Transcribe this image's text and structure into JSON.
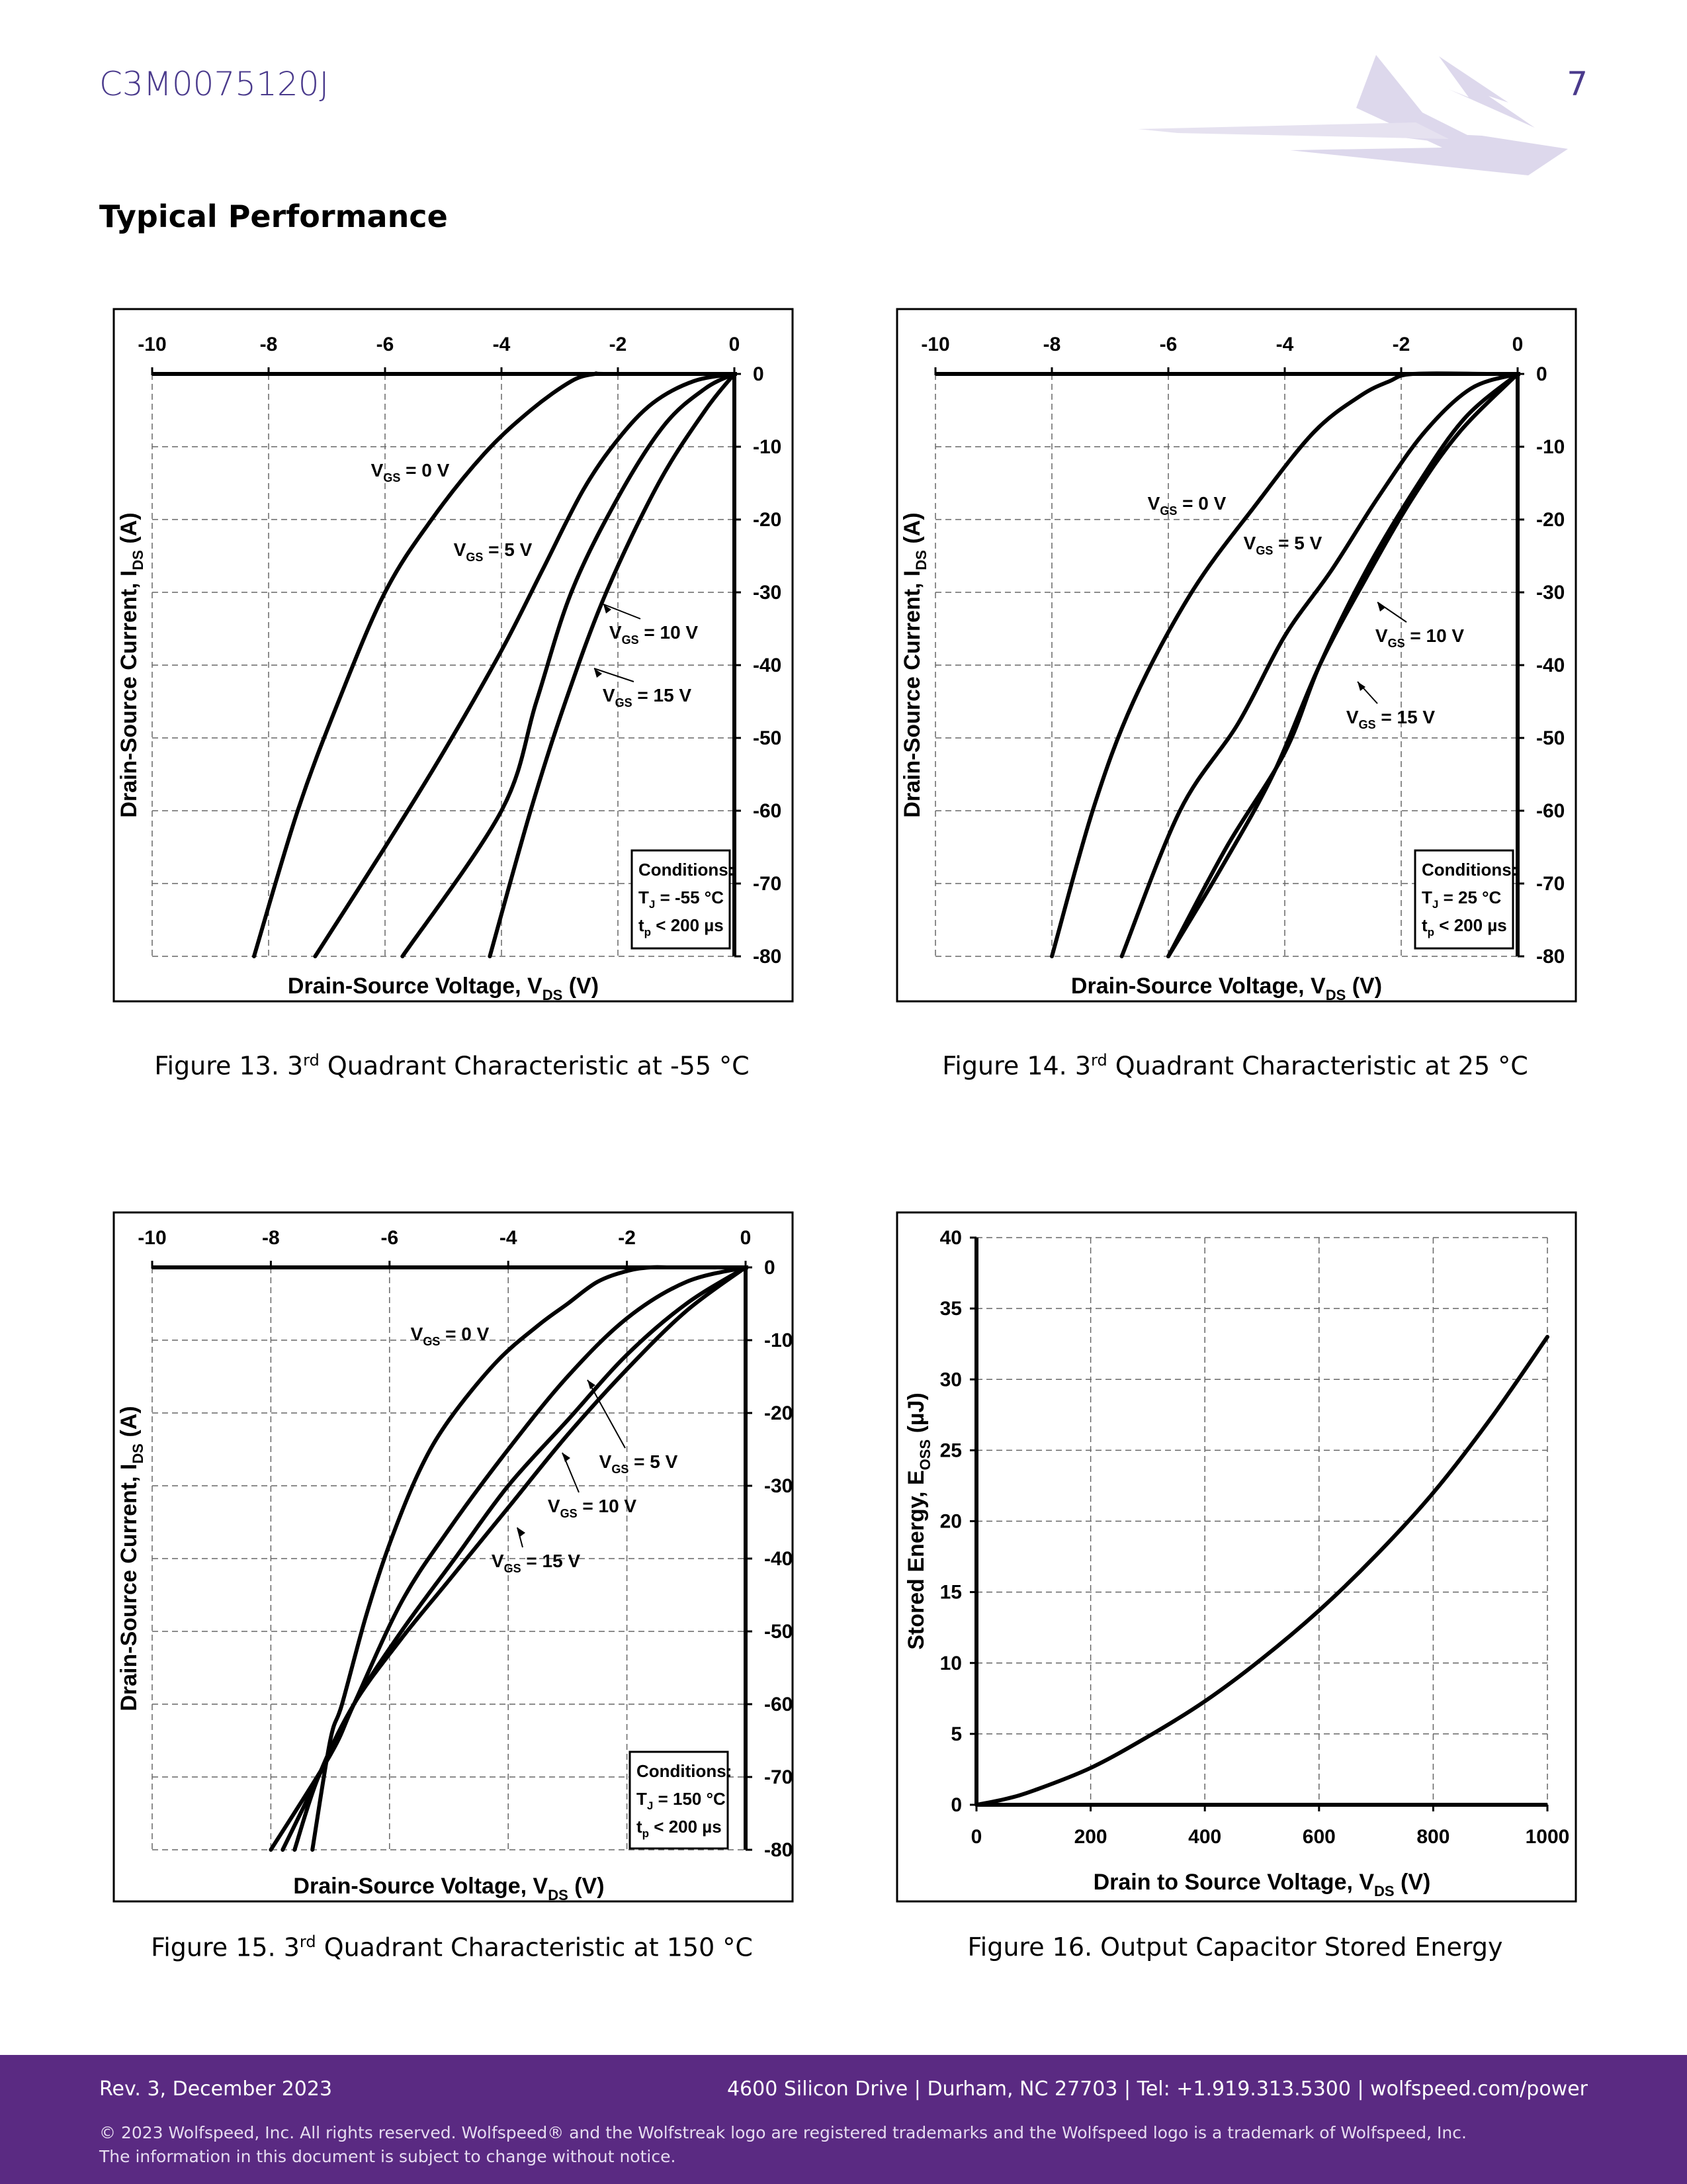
{
  "header": {
    "part_number": "C3M0075120J",
    "page_number": "7",
    "logo_icon": "wolfstreak-logo-icon"
  },
  "section_title": "Typical Performance",
  "chart_data": [
    {
      "type": "line",
      "title": "",
      "xlabel": "Drain-Source Voltage, V",
      "xlabel_sub": "DS",
      "xlabel_suffix": " (V)",
      "ylabel": "Drain-Source Current, I",
      "ylabel_sub": "DS",
      "ylabel_suffix": " (A)",
      "xlim": [
        -10,
        0
      ],
      "ylim": [
        -80,
        0
      ],
      "xticks": [
        -10,
        -8,
        -6,
        -4,
        -2,
        0
      ],
      "yticks": [
        0,
        -10,
        -20,
        -30,
        -40,
        -50,
        -60,
        -70,
        -80
      ],
      "grid": true,
      "series": [
        {
          "name": "V_GS = 0 V",
          "x": [
            -8.25,
            -7.5,
            -6.8,
            -6.0,
            -5.2,
            -4.3,
            -3.5,
            -2.8,
            -2.4,
            -2.2,
            -0.5,
            0
          ],
          "y": [
            -80,
            -60,
            -45,
            -30,
            -20,
            -11,
            -5,
            -1,
            0,
            0,
            0,
            0
          ]
        },
        {
          "name": "V_GS = 5 V",
          "x": [
            -7.2,
            -6.0,
            -5.0,
            -4.0,
            -3.3,
            -2.6,
            -2.0,
            -1.4,
            -0.7,
            0
          ],
          "y": [
            -80,
            -65,
            -52,
            -38,
            -27,
            -16,
            -9,
            -4,
            -1,
            0
          ]
        },
        {
          "name": "V_GS = 10 V",
          "x": [
            -5.7,
            -4.0,
            -3.4,
            -2.8,
            -2.0,
            -1.2,
            -0.5,
            0
          ],
          "y": [
            -80,
            -60,
            -45,
            -30,
            -17,
            -7,
            -2,
            0
          ]
        },
        {
          "name": "V_GS = 15 V",
          "x": [
            -4.2,
            -3.5,
            -2.9,
            -2.2,
            -1.3,
            -0.5,
            0
          ],
          "y": [
            -80,
            -60,
            -45,
            -30,
            -15,
            -5,
            0
          ]
        }
      ],
      "annotations": [
        {
          "series": "V_GS = 0 V",
          "label_main": "V",
          "label_sub": "GS",
          "label_rest": " = 0 V"
        },
        {
          "series": "V_GS = 5 V",
          "label_main": "V",
          "label_sub": "GS",
          "label_rest": " = 5 V"
        },
        {
          "series": "V_GS = 10 V",
          "label_main": "V",
          "label_sub": "GS",
          "label_rest": " = 10 V"
        },
        {
          "series": "V_GS = 15 V",
          "label_main": "V",
          "label_sub": "GS",
          "label_rest": " = 15 V"
        }
      ],
      "conditions": {
        "title": "Conditions:",
        "temp_main": "T",
        "temp_sub": "J",
        "temp_rest": " = -55 °C",
        "pulse_main": "t",
        "pulse_sub": "p",
        "pulse_rest": " < 200 µs"
      },
      "caption": {
        "prefix": "Figure 13. 3",
        "sup": "rd",
        "rest": " Quadrant Characteristic at -55 °C"
      }
    },
    {
      "type": "line",
      "title": "",
      "xlabel": "Drain-Source Voltage, V",
      "xlabel_sub": "DS",
      "xlabel_suffix": " (V)",
      "ylabel": "Drain-Source Current, I",
      "ylabel_sub": "DS",
      "ylabel_suffix": " (A)",
      "xlim": [
        -10,
        0
      ],
      "ylim": [
        -80,
        0
      ],
      "xticks": [
        -10,
        -8,
        -6,
        -4,
        -2,
        0
      ],
      "yticks": [
        0,
        -10,
        -20,
        -30,
        -40,
        -50,
        -60,
        -70,
        -80
      ],
      "grid": true,
      "series": [
        {
          "name": "V_GS = 0 V",
          "x": [
            -8.0,
            -7.3,
            -6.6,
            -5.6,
            -4.5,
            -3.5,
            -2.7,
            -2.2,
            -1.8,
            -0.5,
            0
          ],
          "y": [
            -80,
            -60,
            -45,
            -30,
            -18,
            -8,
            -3,
            -1,
            0,
            0,
            0
          ]
        },
        {
          "name": "V_GS = 5 V",
          "x": [
            -6.8,
            -5.8,
            -4.8,
            -4.0,
            -3.2,
            -2.4,
            -1.6,
            -0.8,
            0
          ],
          "y": [
            -80,
            -60,
            -48,
            -36,
            -27,
            -17,
            -8,
            -2,
            0
          ]
        },
        {
          "name": "V_GS = 10 V",
          "x": [
            -6.0,
            -5.0,
            -4.0,
            -3.4,
            -2.6,
            -1.7,
            -0.9,
            0
          ],
          "y": [
            -80,
            -65,
            -52,
            -40,
            -27,
            -15,
            -6,
            0
          ]
        },
        {
          "name": "V_GS = 15 V",
          "x": [
            -6.0,
            -5.1,
            -4.2,
            -3.4,
            -2.6,
            -1.8,
            -1.0,
            0
          ],
          "y": [
            -80,
            -68,
            -55,
            -40,
            -28,
            -17,
            -8,
            0
          ]
        }
      ],
      "annotations": [
        {
          "series": "V_GS = 0 V",
          "label_main": "V",
          "label_sub": "GS",
          "label_rest": " = 0 V"
        },
        {
          "series": "V_GS = 5 V",
          "label_main": "V",
          "label_sub": "GS",
          "label_rest": " = 5 V"
        },
        {
          "series": "V_GS = 10 V",
          "label_main": "V",
          "label_sub": "GS",
          "label_rest": " = 10 V"
        },
        {
          "series": "V_GS = 15 V",
          "label_main": "V",
          "label_sub": "GS",
          "label_rest": " = 15 V"
        }
      ],
      "conditions": {
        "title": "Conditions:",
        "temp_main": "T",
        "temp_sub": "J",
        "temp_rest": " = 25 °C",
        "pulse_main": "t",
        "pulse_sub": "p",
        "pulse_rest": " < 200 µs"
      },
      "caption": {
        "prefix": "Figure 14. 3",
        "sup": "rd",
        "rest": " Quadrant Characteristic at 25 °C"
      }
    },
    {
      "type": "line",
      "title": "",
      "xlabel": "Drain-Source Voltage, V",
      "xlabel_sub": "DS",
      "xlabel_suffix": " (V)",
      "ylabel": "Drain-Source Current, I",
      "ylabel_sub": "DS",
      "ylabel_suffix": " (A)",
      "xlim": [
        -10,
        0
      ],
      "ylim": [
        -80,
        0
      ],
      "xticks": [
        -10,
        -8,
        -6,
        -4,
        -2,
        0
      ],
      "yticks": [
        0,
        -10,
        -20,
        -30,
        -40,
        -50,
        -60,
        -70,
        -80
      ],
      "grid": true,
      "series": [
        {
          "name": "V_GS = 0 V",
          "x": [
            -7.3,
            -7.0,
            -6.8,
            -6.4,
            -6.0,
            -5.5,
            -5.0,
            -4.2,
            -3.5,
            -3.0,
            -2.5,
            -2.0,
            -1.6,
            -1.2,
            0
          ],
          "y": [
            -80,
            -65,
            -60,
            -48,
            -38,
            -28,
            -21,
            -13,
            -8,
            -5,
            -2,
            -0.5,
            0,
            0,
            0
          ]
        },
        {
          "name": "V_GS = 5 V",
          "x": [
            -8.0,
            -7.0,
            -6.6,
            -5.8,
            -5.0,
            -4.0,
            -3.0,
            -2.0,
            -1.0,
            0
          ],
          "y": [
            -80,
            -67,
            -60,
            -46,
            -36,
            -25,
            -15,
            -7,
            -2,
            0
          ]
        },
        {
          "name": "V_GS = 10 V",
          "x": [
            -7.8,
            -7.2,
            -6.6,
            -5.8,
            -4.9,
            -4.0,
            -3.0,
            -2.0,
            -1.0,
            0
          ],
          "y": [
            -80,
            -70,
            -60,
            -50,
            -40,
            -30,
            -21,
            -12,
            -5,
            0
          ]
        },
        {
          "name": "V_GS = 15 V",
          "x": [
            -7.6,
            -7.2,
            -6.6,
            -5.8,
            -5.0,
            -4.0,
            -3.0,
            -2.0,
            -1.0,
            0
          ],
          "y": [
            -80,
            -70,
            -60,
            -51,
            -43,
            -33,
            -23,
            -14,
            -6,
            0
          ]
        }
      ],
      "annotations": [
        {
          "series": "V_GS = 0 V",
          "label_main": "V",
          "label_sub": "GS",
          "label_rest": " = 0 V"
        },
        {
          "series": "V_GS = 5 V",
          "label_main": "V",
          "label_sub": "GS",
          "label_rest": " = 5 V"
        },
        {
          "series": "V_GS = 10 V",
          "label_main": "V",
          "label_sub": "GS",
          "label_rest": " = 10 V"
        },
        {
          "series": "V_GS = 15 V",
          "label_main": "V",
          "label_sub": "GS",
          "label_rest": " = 15 V"
        }
      ],
      "conditions": {
        "title": "Conditions:",
        "temp_main": "T",
        "temp_sub": "J",
        "temp_rest": " = 150 °C",
        "pulse_main": "t",
        "pulse_sub": "p",
        "pulse_rest": " < 200 µs"
      },
      "caption": {
        "prefix": "Figure 15. 3",
        "sup": "rd",
        "rest": " Quadrant Characteristic at 150 °C"
      }
    },
    {
      "type": "line",
      "title": "",
      "xlabel": "Drain to Source Voltage, V",
      "xlabel_sub": "DS",
      "xlabel_suffix": " (V)",
      "ylabel": "Stored Energy, E",
      "ylabel_sub": "OSS",
      "ylabel_suffix": " (µJ)",
      "xlim": [
        0,
        1000
      ],
      "ylim": [
        0,
        40
      ],
      "xticks": [
        0,
        200,
        400,
        600,
        800,
        1000
      ],
      "yticks": [
        0,
        5,
        10,
        15,
        20,
        25,
        30,
        35,
        40
      ],
      "grid": true,
      "series": [
        {
          "name": "E_OSS",
          "x": [
            0,
            50,
            100,
            200,
            300,
            400,
            500,
            600,
            700,
            800,
            900,
            1000
          ],
          "y": [
            0,
            0.4,
            1.0,
            2.6,
            4.8,
            7.3,
            10.3,
            13.7,
            17.6,
            22.0,
            27.2,
            33.0
          ]
        }
      ],
      "caption": {
        "prefix": "Figure 16. Output Capacitor Stored Energy",
        "sup": "",
        "rest": ""
      }
    }
  ],
  "footer": {
    "rev": "Rev. 3, December 2023",
    "address": "4600 Silicon Drive | Durham, NC 27703 | Tel: +1.919.313.5300 | wolfspeed.com/power",
    "legal_1": "© 2023 Wolfspeed, Inc. All rights reserved. Wolfspeed® and the Wolfstreak logo are registered trademarks and the Wolfspeed logo is a trademark of Wolfspeed, Inc.",
    "legal_2": "The information in this document is subject to change without notice."
  }
}
